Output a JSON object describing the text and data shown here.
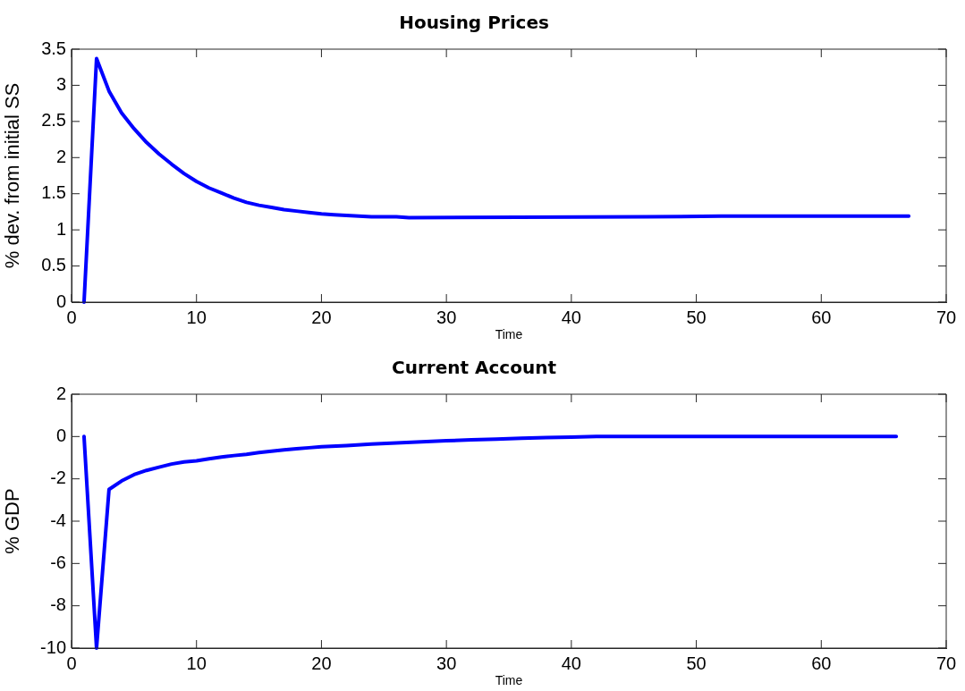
{
  "chart_data": [
    {
      "type": "line",
      "title": "Housing Prices",
      "xlabel": "Time",
      "ylabel": "% dev. from initial SS",
      "x": [
        1,
        2,
        3,
        4,
        5,
        6,
        7,
        8,
        9,
        10,
        11,
        12,
        13,
        14,
        15,
        16,
        17,
        18,
        19,
        20,
        21,
        22,
        23,
        24,
        26,
        27,
        46,
        52,
        67
      ],
      "series": [
        {
          "color": "#0000ff",
          "values": [
            0,
            3.37,
            2.92,
            2.62,
            2.4,
            2.21,
            2.05,
            1.91,
            1.78,
            1.67,
            1.58,
            1.51,
            1.44,
            1.38,
            1.34,
            1.31,
            1.28,
            1.26,
            1.24,
            1.22,
            1.21,
            1.2,
            1.19,
            1.18,
            1.18,
            1.17,
            1.18,
            1.19,
            1.19
          ]
        }
      ],
      "xlim": [
        0,
        70
      ],
      "xticks": [
        0,
        10,
        20,
        30,
        40,
        50,
        60,
        70
      ],
      "ylim": [
        0,
        3.5
      ],
      "yticks": [
        0,
        0.5,
        1,
        1.5,
        2,
        2.5,
        3,
        3.5
      ],
      "grid": false,
      "legend": false,
      "marker": "none",
      "line_style": "solid"
    },
    {
      "type": "line",
      "title": "Current Account",
      "xlabel": "Time",
      "ylabel": "% GDP",
      "x": [
        1,
        2,
        3,
        4,
        5,
        6,
        7,
        8,
        9,
        10,
        11,
        12,
        13,
        14,
        15,
        16,
        17,
        18,
        19,
        20,
        22,
        24,
        26,
        28,
        30,
        32,
        34,
        36,
        38,
        40,
        42,
        66
      ],
      "series": [
        {
          "color": "#0000ff",
          "values": [
            0,
            -10,
            -2.5,
            -2.1,
            -1.8,
            -1.6,
            -1.45,
            -1.3,
            -1.2,
            -1.15,
            -1.05,
            -0.97,
            -0.9,
            -0.84,
            -0.76,
            -0.69,
            -0.63,
            -0.58,
            -0.53,
            -0.48,
            -0.43,
            -0.36,
            -0.3,
            -0.25,
            -0.2,
            -0.16,
            -0.12,
            -0.08,
            -0.05,
            -0.03,
            0,
            0
          ]
        }
      ],
      "xlim": [
        0,
        70
      ],
      "xticks": [
        0,
        10,
        20,
        30,
        40,
        50,
        60,
        70
      ],
      "ylim": [
        -10,
        2
      ],
      "yticks": [
        -10,
        -8,
        -6,
        -4,
        -2,
        0,
        2
      ],
      "grid": false,
      "legend": false,
      "marker": "none",
      "line_style": "solid"
    }
  ]
}
